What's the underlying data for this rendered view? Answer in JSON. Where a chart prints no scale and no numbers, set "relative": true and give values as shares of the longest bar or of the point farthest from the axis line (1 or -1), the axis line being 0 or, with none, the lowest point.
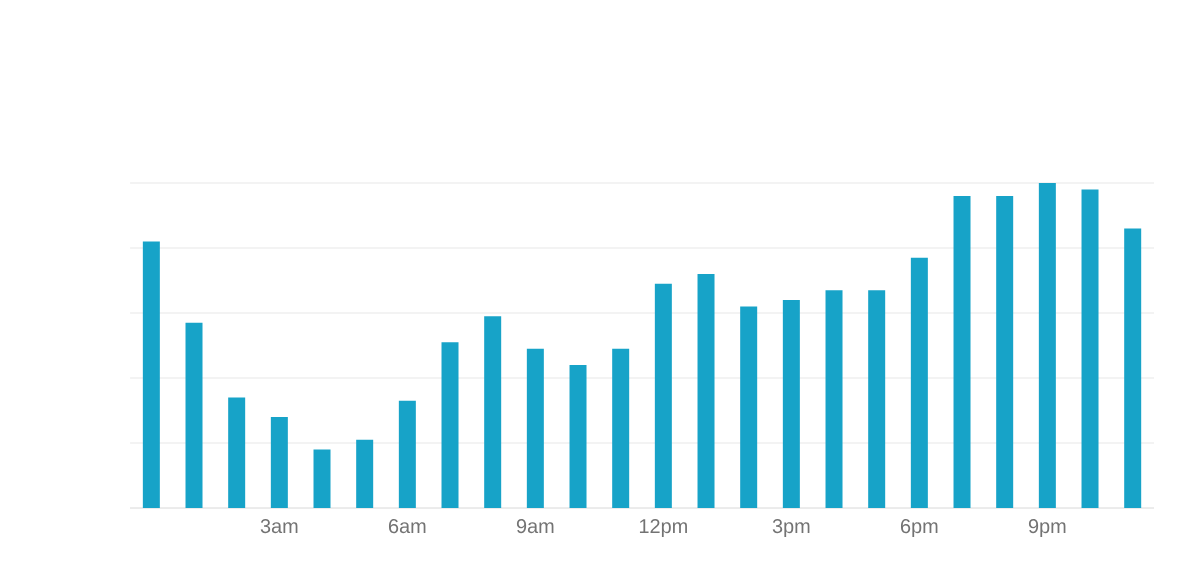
{
  "chart_data": {
    "type": "bar",
    "relative": true,
    "color": "#17a3c8",
    "grid": "y",
    "categories": [
      null,
      null,
      null,
      "3am",
      null,
      null,
      "6am",
      null,
      null,
      "9am",
      null,
      null,
      "12pm",
      null,
      null,
      "3pm",
      null,
      null,
      "6pm",
      null,
      null,
      "9pm",
      null,
      null
    ],
    "values": [
      0.82,
      0.57,
      0.34,
      0.28,
      0.18,
      0.21,
      0.33,
      0.51,
      0.59,
      0.49,
      0.44,
      0.49,
      0.69,
      0.72,
      0.62,
      0.64,
      0.67,
      0.67,
      0.77,
      0.96,
      0.96,
      1,
      0.98,
      0.86
    ]
  }
}
